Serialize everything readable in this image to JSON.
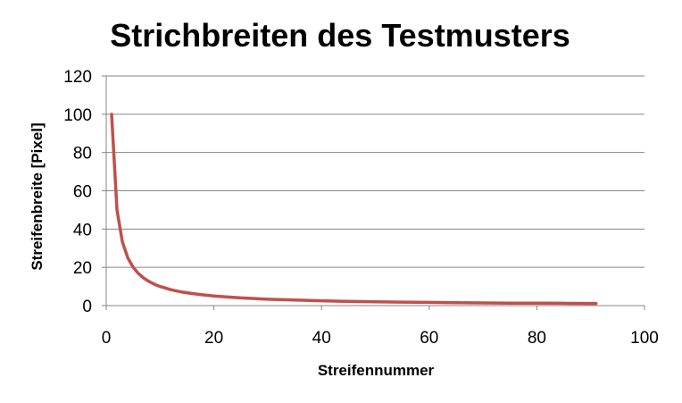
{
  "chart_data": {
    "type": "line",
    "title": "Strichbreiten des Testmusters",
    "xlabel": "Streifennummer",
    "ylabel": "Streifenbreite [Pixel]",
    "xlim": [
      0,
      100
    ],
    "ylim": [
      0,
      120
    ],
    "xticks": [
      0,
      20,
      40,
      60,
      80,
      100
    ],
    "yticks": [
      0,
      20,
      40,
      60,
      80,
      100,
      120
    ],
    "grid": "horizontal",
    "legend": "none",
    "series": [
      {
        "color": "#C0504D",
        "x": [
          1,
          2,
          3,
          4,
          5,
          6,
          7,
          8,
          9,
          10,
          12,
          14,
          16,
          18,
          20,
          25,
          30,
          35,
          40,
          45,
          50,
          55,
          60,
          65,
          70,
          75,
          80,
          85,
          91
        ],
        "y": [
          100,
          50,
          33.3,
          25,
          20,
          16.7,
          14.3,
          12.5,
          11.1,
          10,
          8.3,
          7.1,
          6.3,
          5.6,
          5,
          4,
          3.3,
          2.9,
          2.5,
          2.2,
          2,
          1.8,
          1.7,
          1.5,
          1.4,
          1.3,
          1.3,
          1.2,
          1.1
        ]
      }
    ]
  }
}
